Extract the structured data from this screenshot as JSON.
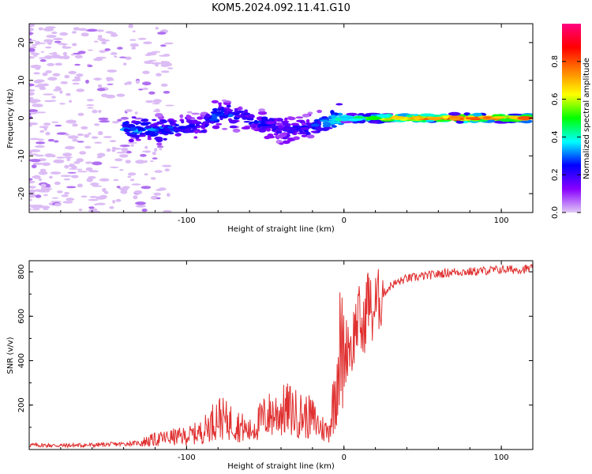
{
  "figure": {
    "title": "KOM5.2024.092.11.41.G10"
  },
  "chart_data": [
    {
      "type": "heatmap",
      "xlabel": "Height of straight line (km)",
      "ylabel": "Frequency (Hz)",
      "xlim": [
        -200,
        120
      ],
      "ylim": [
        -25,
        25
      ],
      "x_ticks": [
        -100,
        0,
        100
      ],
      "y_ticks": [
        -20,
        -10,
        0,
        10,
        20
      ],
      "grid": false,
      "colorbar": {
        "label": "Normalized spectral amplitude",
        "range": [
          0,
          1
        ],
        "ticks": [
          0.0,
          0.2,
          0.4,
          0.6,
          0.8
        ],
        "colors": [
          "#e0c8f5",
          "#8800ff",
          "#0000ff",
          "#00ffff",
          "#00ff00",
          "#ffff00",
          "#ff8000",
          "#ff0000",
          "#ff0080"
        ]
      },
      "ridge": [
        {
          "x": -130,
          "f": -3,
          "amp": 0.3
        },
        {
          "x": -110,
          "f": -3,
          "amp": 0.25
        },
        {
          "x": -90,
          "f": -2,
          "amp": 0.2
        },
        {
          "x": -80,
          "f": 1,
          "amp": 0.3
        },
        {
          "x": -65,
          "f": 0.5,
          "amp": 0.2
        },
        {
          "x": -55,
          "f": -1,
          "amp": 0.25
        },
        {
          "x": -40,
          "f": -3,
          "amp": 0.2
        },
        {
          "x": -25,
          "f": -3,
          "amp": 0.2
        },
        {
          "x": -12,
          "f": -1,
          "amp": 0.3
        },
        {
          "x": 0,
          "f": 0,
          "amp": 0.45
        },
        {
          "x": 15,
          "f": 0,
          "amp": 0.5
        },
        {
          "x": 30,
          "f": 0,
          "amp": 0.7
        },
        {
          "x": 50,
          "f": 0,
          "amp": 0.75
        },
        {
          "x": 70,
          "f": 0,
          "amp": 0.85
        },
        {
          "x": 90,
          "f": 0,
          "amp": 0.8
        },
        {
          "x": 110,
          "f": 0,
          "amp": 0.75
        }
      ]
    },
    {
      "type": "line",
      "xlabel": "Height of straight line (km)",
      "ylabel": "SNR (v/v)",
      "xlim": [
        -200,
        120
      ],
      "ylim": [
        0,
        850
      ],
      "x_ticks": [
        -100,
        0,
        100
      ],
      "y_ticks": [
        200,
        400,
        600,
        800
      ],
      "grid": false,
      "line_color": "#e03030",
      "series": [
        {
          "x": [
            -200,
            -180,
            -160,
            -140,
            -130,
            -120,
            -110,
            -100,
            -90,
            -80,
            -75,
            -70,
            -60,
            -50,
            -45,
            -40,
            -35,
            -30,
            -25,
            -20,
            -15,
            -10,
            -8,
            -5,
            -3,
            0,
            3,
            5,
            7,
            10,
            12,
            15,
            18,
            20,
            25,
            30,
            40,
            50,
            60,
            70,
            80,
            90,
            100,
            110,
            120
          ],
          "y": [
            20,
            18,
            20,
            25,
            30,
            45,
            55,
            60,
            80,
            150,
            130,
            120,
            80,
            150,
            160,
            170,
            180,
            160,
            150,
            140,
            100,
            80,
            150,
            300,
            450,
            400,
            500,
            450,
            550,
            600,
            500,
            700,
            600,
            650,
            700,
            740,
            770,
            780,
            790,
            800,
            800,
            805,
            810,
            810,
            815
          ]
        }
      ]
    }
  ]
}
